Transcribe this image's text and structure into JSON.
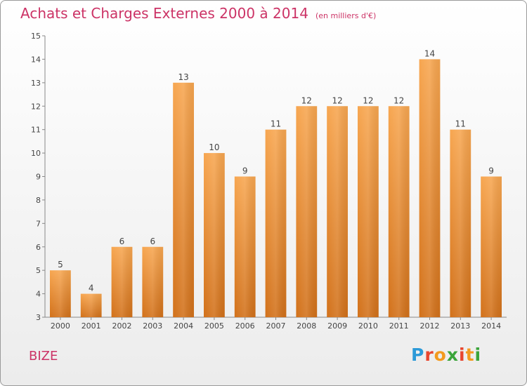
{
  "chart_data": {
    "type": "bar",
    "title": "Achats et Charges Externes 2000 à 2014",
    "subtitle": "(en milliers d'€)",
    "categories": [
      "2000",
      "2001",
      "2002",
      "2003",
      "2004",
      "2005",
      "2006",
      "2007",
      "2008",
      "2009",
      "2010",
      "2011",
      "2012",
      "2013",
      "2014"
    ],
    "values": [
      5,
      4,
      6,
      6,
      13,
      10,
      9,
      11,
      12,
      12,
      12,
      12,
      14,
      11,
      9
    ],
    "ylim": [
      3,
      15
    ],
    "yticks": [
      "3",
      "4",
      "5",
      "6",
      "7",
      "8",
      "9",
      "10",
      "11",
      "12",
      "13",
      "14",
      "15"
    ],
    "grid": false,
    "bar_color": "#f0902e",
    "xlabel": "",
    "ylabel": ""
  },
  "commune": "BIZE",
  "logo": {
    "letters": [
      "P",
      "r",
      "o",
      "x",
      "i",
      "t",
      "i"
    ],
    "colors": [
      "#2c9ad8",
      "#e8462e",
      "#f39a1e",
      "#3aa43a",
      "#e8462e",
      "#f39a1e",
      "#3aa43a"
    ]
  }
}
